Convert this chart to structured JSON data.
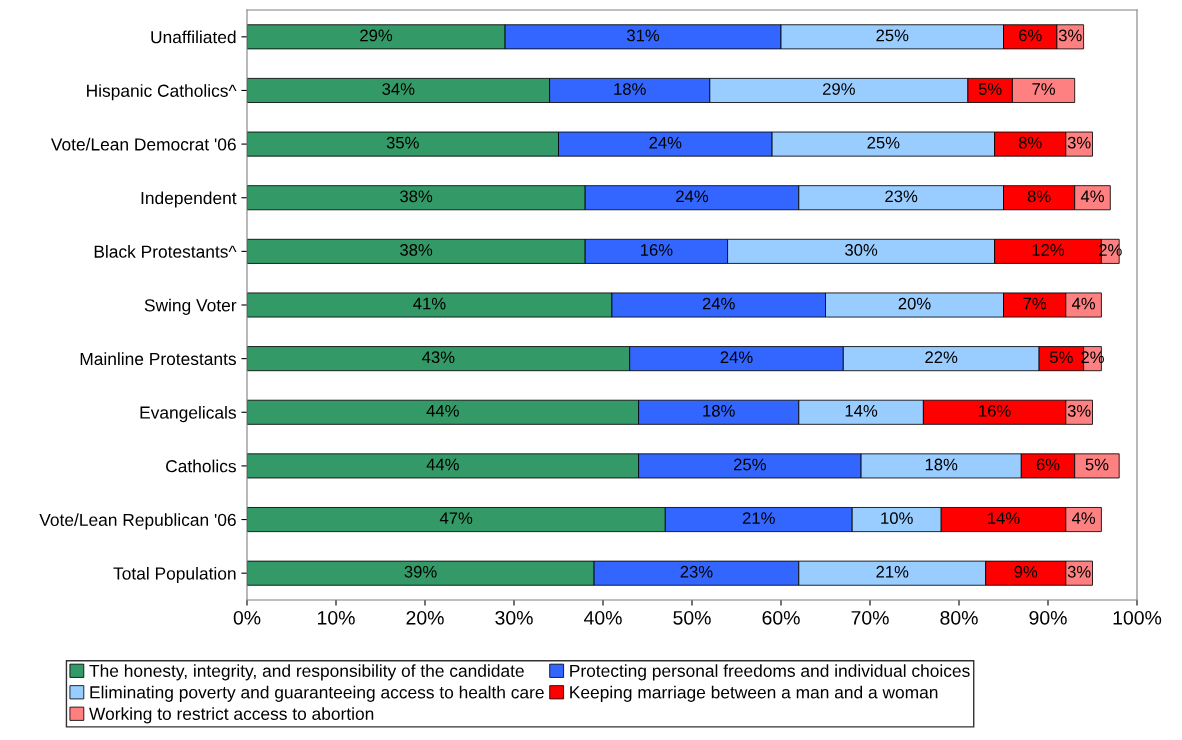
{
  "chart_data": {
    "type": "bar",
    "orientation": "horizontal",
    "stacked": true,
    "grid": false,
    "legend": "bottom",
    "categories": [
      "Unaffiliated",
      "Hispanic Catholics^",
      "Vote/Lean Democrat '06",
      "Independent",
      "Black Protestants^",
      "Swing Voter",
      "Mainline Protestants",
      "Evangelicals",
      "Catholics",
      "Vote/Lean Republican '06",
      "Total Population"
    ],
    "series": [
      {
        "name": "The honesty, integrity, and responsibility of the candidate",
        "color": "#339966",
        "values": [
          29,
          34,
          35,
          38,
          38,
          41,
          43,
          44,
          44,
          47,
          39
        ],
        "value_labels": [
          "29%",
          "34%",
          "35%",
          "38%",
          "38%",
          "41%",
          "43%",
          "44%",
          "44%",
          "47%",
          "39%"
        ]
      },
      {
        "name": "Protecting personal freedoms and individual choices",
        "color": "#3366ff",
        "values": [
          31,
          18,
          24,
          24,
          16,
          24,
          24,
          18,
          25,
          21,
          23
        ],
        "value_labels": [
          "31%",
          "18%",
          "24%",
          "24%",
          "16%",
          "24%",
          "24%",
          "18%",
          "25%",
          "21%",
          "23%"
        ]
      },
      {
        "name": "Eliminating poverty and guaranteeing access to health care",
        "color": "#99ccff",
        "values": [
          25,
          29,
          25,
          23,
          30,
          20,
          22,
          14,
          18,
          10,
          21
        ],
        "value_labels": [
          "25%",
          "29%",
          "25%",
          "23%",
          "30%",
          "20%",
          "22%",
          "14%",
          "18%",
          "10%",
          "21%"
        ]
      },
      {
        "name": "Keeping marriage between a man and a woman",
        "color": "#ff0000",
        "values": [
          6,
          5,
          8,
          8,
          12,
          7,
          5,
          16,
          6,
          14,
          9
        ],
        "value_labels": [
          "6%",
          "5%",
          "8%",
          "8%",
          "12%",
          "7%",
          "5%",
          "16%",
          "6%",
          "14%",
          "9%"
        ]
      },
      {
        "name": "Working to restrict access to abortion",
        "color": "#ff8080",
        "values": [
          3,
          7,
          3,
          4,
          2,
          4,
          2,
          3,
          5,
          4,
          3
        ],
        "value_labels": [
          "3%",
          "7%",
          "3%",
          "4%",
          "2%",
          "4%",
          "2%",
          "3%",
          "5%",
          "4%",
          "3%"
        ]
      }
    ],
    "xlim": [
      0,
      100
    ],
    "xticks": [
      {
        "value": 0,
        "label": "0%"
      },
      {
        "value": 10,
        "label": "10%"
      },
      {
        "value": 20,
        "label": "20%"
      },
      {
        "value": 30,
        "label": "30%"
      },
      {
        "value": 40,
        "label": "40%"
      },
      {
        "value": 50,
        "label": "50%"
      },
      {
        "value": 60,
        "label": "60%"
      },
      {
        "value": 70,
        "label": "70%"
      },
      {
        "value": 80,
        "label": "80%"
      },
      {
        "value": 90,
        "label": "90%"
      },
      {
        "value": 100,
        "label": "100%"
      }
    ]
  }
}
